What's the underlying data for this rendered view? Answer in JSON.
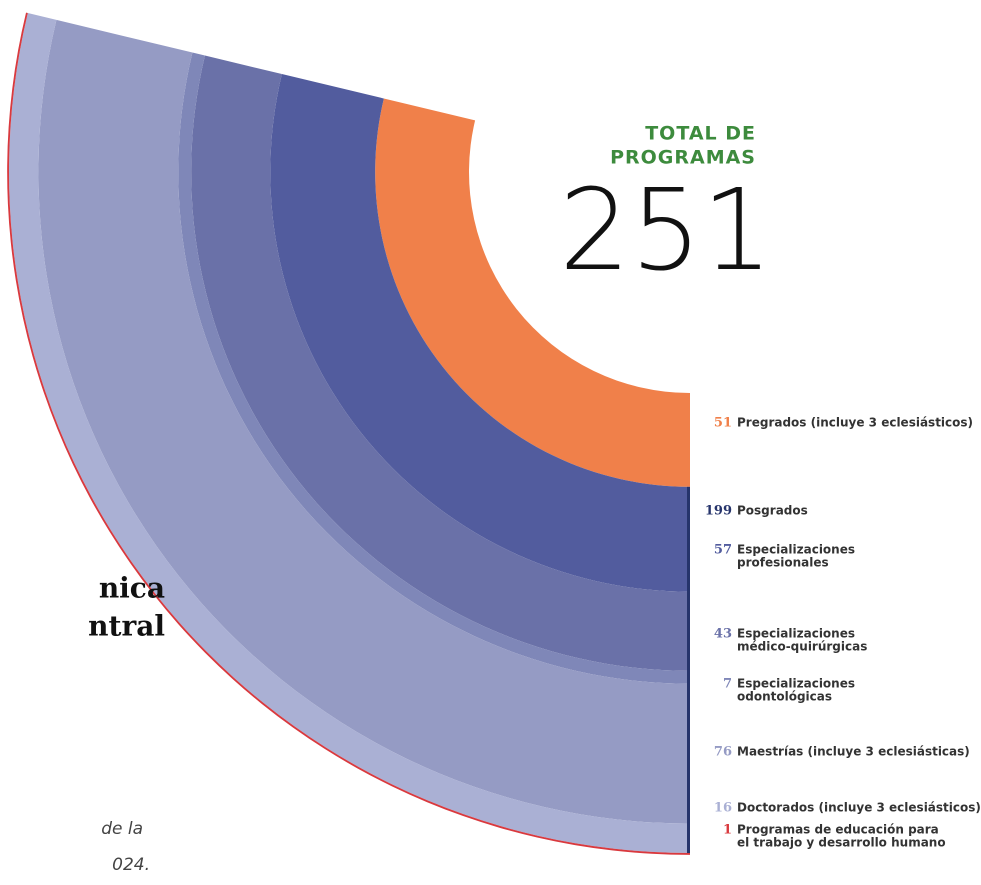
{
  "chart_data": {
    "type": "radial",
    "total_label": [
      "TOTAL DE",
      "PROGRAMAS"
    ],
    "total": 251,
    "total_color": "#3d8b3d",
    "series": [
      {
        "name": [
          "Pregrados (incluye 3 eclesiásticos)"
        ],
        "value": 51,
        "color": "#f0804a"
      },
      {
        "name": [
          "Especializaciones",
          "profesionales"
        ],
        "value": 57,
        "color": "#525c9e"
      },
      {
        "name": [
          "Especializaciones",
          "médico-quirúrgicas"
        ],
        "value": 43,
        "color": "#6a71a8"
      },
      {
        "name": [
          "Especializaciones",
          "odontológicas"
        ],
        "value": 7,
        "color": "#7f87b8"
      },
      {
        "name": [
          "Maestrías (incluye 3 eclesiásticas)"
        ],
        "value": 76,
        "color": "#959bc4"
      },
      {
        "name": [
          "Doctorados (incluye 3 eclesiásticos)"
        ],
        "value": 16,
        "color": "#aab0d4"
      },
      {
        "name": [
          "Programas de educación para",
          "el trabajo y desarrollo humano"
        ],
        "value": 1,
        "color": "#d9393e"
      }
    ],
    "subtotal": {
      "name": "Posgrados",
      "value": 199,
      "color": "#26346b"
    },
    "fragments": [
      "nica",
      "ntral",
      "de la",
      "024."
    ]
  }
}
